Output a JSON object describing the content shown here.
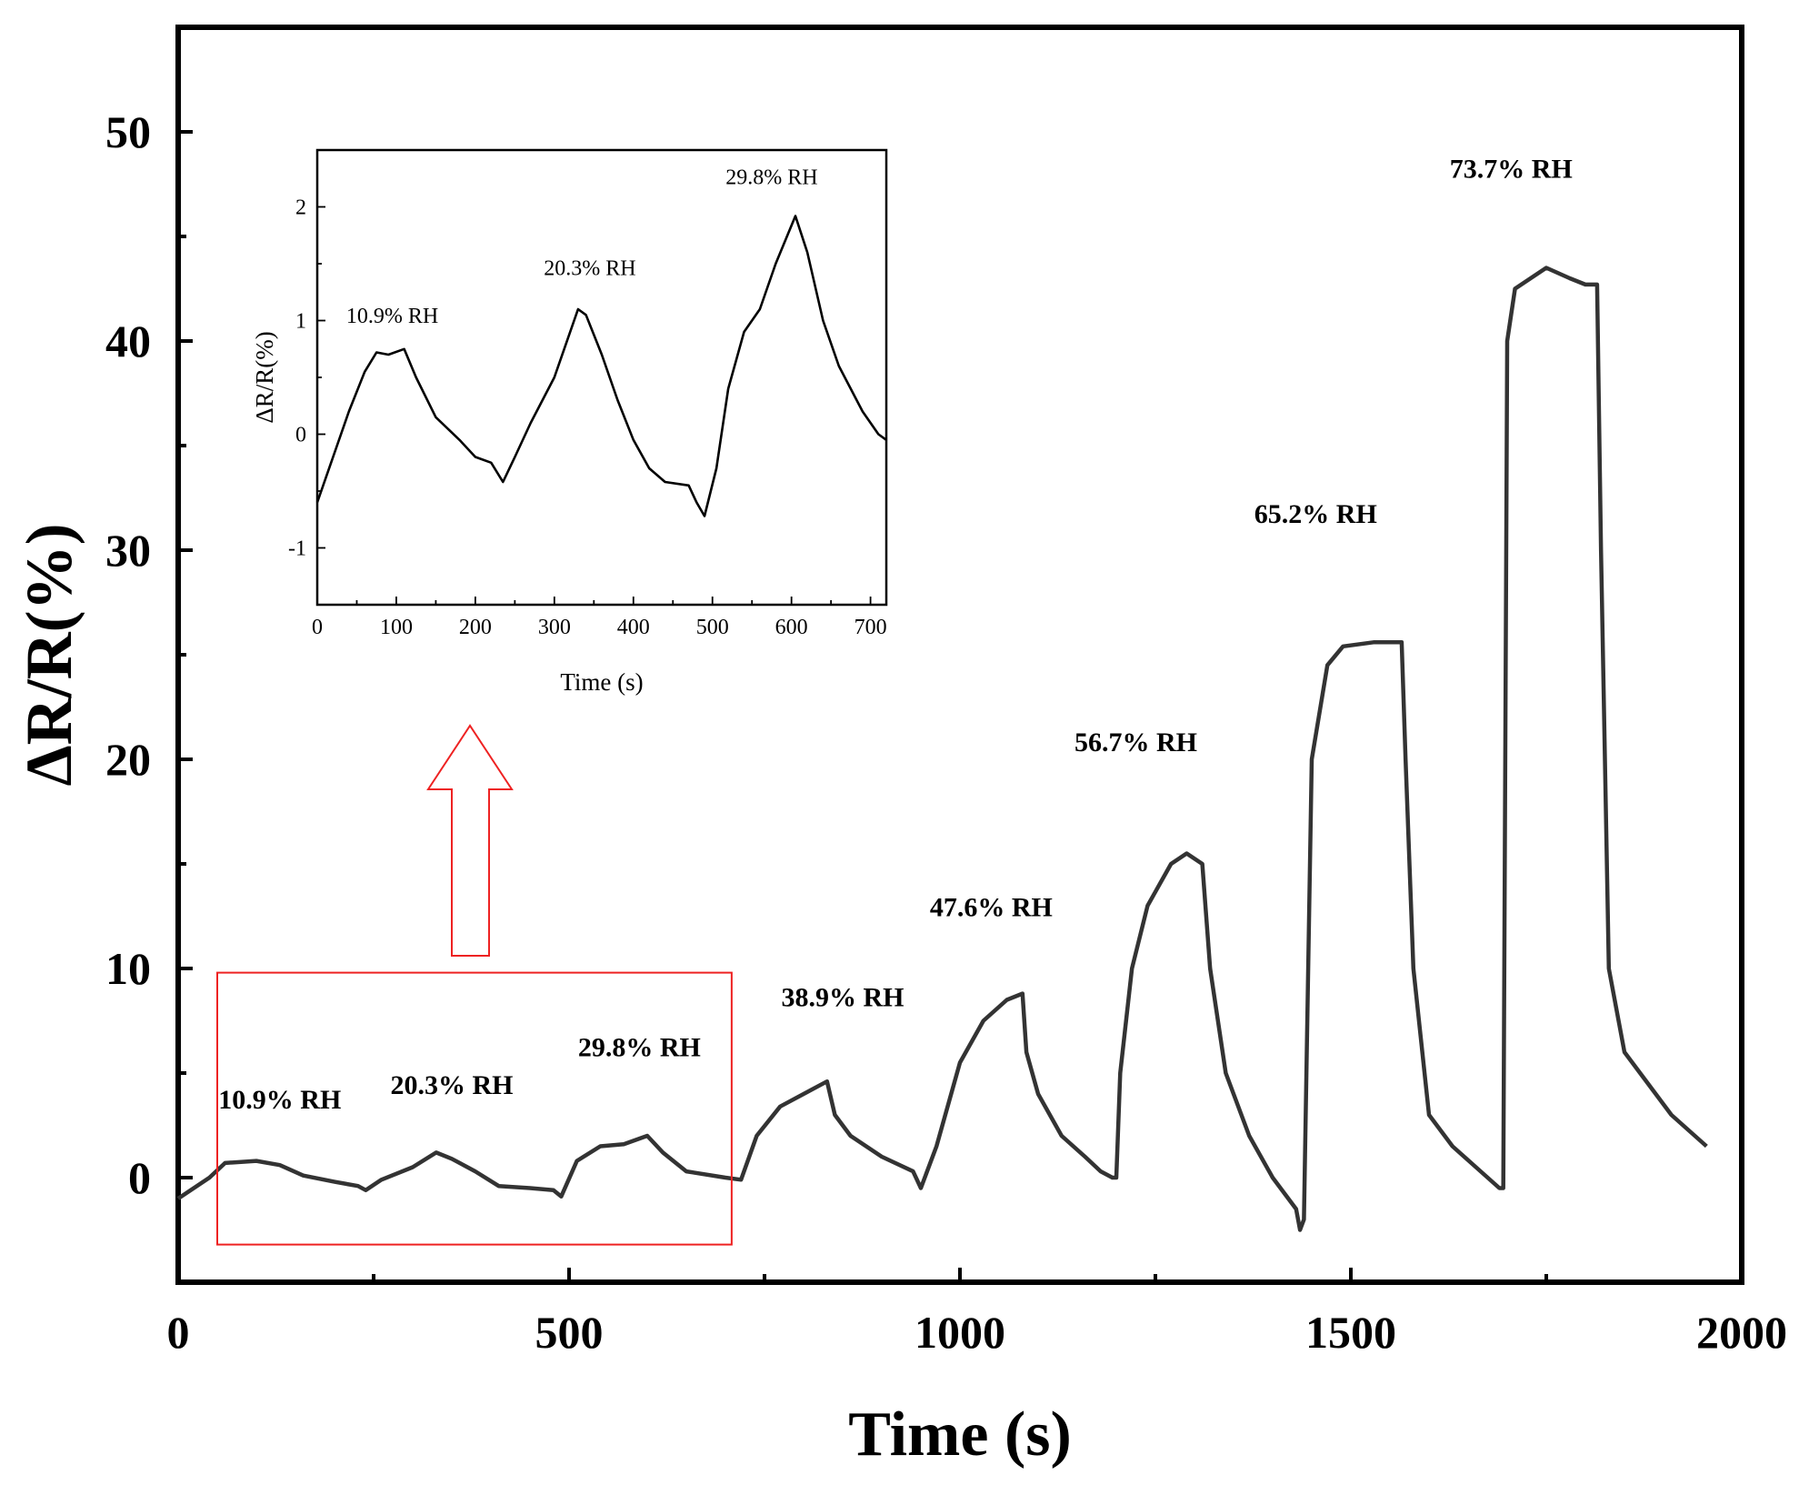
{
  "chart_data": [
    {
      "type": "line",
      "name": "main",
      "xlabel": "Time (s)",
      "ylabel": "ΔR/R(%)",
      "xlim": [
        0,
        2000
      ],
      "ylim": [
        -5,
        55
      ],
      "xticks": [
        0,
        500,
        1000,
        1500,
        2000
      ],
      "xtick_labels": [
        "0",
        "500",
        "1000",
        "1500",
        "2000"
      ],
      "yticks": [
        0,
        10,
        20,
        30,
        40,
        50
      ],
      "ytick_labels": [
        "0",
        "10",
        "20",
        "30",
        "40",
        "50"
      ],
      "color": "#333333",
      "series": [
        {
          "name": "humidity response",
          "points": [
            [
              0,
              -1
            ],
            [
              40,
              0
            ],
            [
              60,
              0.7
            ],
            [
              100,
              0.8
            ],
            [
              130,
              0.6
            ],
            [
              160,
              0.1
            ],
            [
              200,
              -0.2
            ],
            [
              230,
              -0.4
            ],
            [
              240,
              -0.6
            ],
            [
              260,
              -0.1
            ],
            [
              300,
              0.5
            ],
            [
              330,
              1.2
            ],
            [
              350,
              0.9
            ],
            [
              380,
              0.3
            ],
            [
              410,
              -0.4
            ],
            [
              450,
              -0.5
            ],
            [
              480,
              -0.6
            ],
            [
              490,
              -0.9
            ],
            [
              510,
              0.8
            ],
            [
              540,
              1.5
            ],
            [
              570,
              1.6
            ],
            [
              600,
              2.0
            ],
            [
              620,
              1.2
            ],
            [
              650,
              0.3
            ],
            [
              700,
              0.0
            ],
            [
              720,
              -0.1
            ],
            [
              740,
              2.0
            ],
            [
              770,
              3.4
            ],
            [
              800,
              4.0
            ],
            [
              830,
              4.6
            ],
            [
              840,
              3.0
            ],
            [
              860,
              2.0
            ],
            [
              900,
              1.0
            ],
            [
              940,
              0.3
            ],
            [
              950,
              -0.5
            ],
            [
              970,
              1.5
            ],
            [
              1000,
              5.5
            ],
            [
              1030,
              7.5
            ],
            [
              1060,
              8.5
            ],
            [
              1080,
              8.8
            ],
            [
              1085,
              6.0
            ],
            [
              1100,
              4.0
            ],
            [
              1130,
              2.0
            ],
            [
              1160,
              1.0
            ],
            [
              1180,
              0.3
            ],
            [
              1195,
              0.0
            ],
            [
              1200,
              0.0
            ],
            [
              1205,
              5.0
            ],
            [
              1220,
              10.0
            ],
            [
              1240,
              13.0
            ],
            [
              1270,
              15.0
            ],
            [
              1290,
              15.5
            ],
            [
              1310,
              15.0
            ],
            [
              1320,
              10.0
            ],
            [
              1340,
              5.0
            ],
            [
              1370,
              2.0
            ],
            [
              1400,
              0.0
            ],
            [
              1430,
              -1.5
            ],
            [
              1435,
              -2.5
            ],
            [
              1440,
              -2.0
            ],
            [
              1450,
              20.0
            ],
            [
              1470,
              24.5
            ],
            [
              1490,
              25.4
            ],
            [
              1530,
              25.6
            ],
            [
              1565,
              25.6
            ],
            [
              1570,
              20.0
            ],
            [
              1580,
              10.0
            ],
            [
              1600,
              3.0
            ],
            [
              1630,
              1.5
            ],
            [
              1660,
              0.5
            ],
            [
              1690,
              -0.5
            ],
            [
              1695,
              -0.5
            ],
            [
              1700,
              40.0
            ],
            [
              1710,
              42.5
            ],
            [
              1750,
              43.5
            ],
            [
              1780,
              43.0
            ],
            [
              1800,
              42.7
            ],
            [
              1815,
              42.7
            ],
            [
              1820,
              30.0
            ],
            [
              1830,
              10.0
            ],
            [
              1850,
              6.0
            ],
            [
              1880,
              4.5
            ],
            [
              1910,
              3.0
            ],
            [
              1940,
              2.0
            ],
            [
              1955,
              1.5
            ]
          ]
        }
      ],
      "annotations": [
        {
          "text": "10.9% RH",
          "x": 130,
          "y": 3.3
        },
        {
          "text": "20.3% RH",
          "x": 350,
          "y": 4.0
        },
        {
          "text": "29.8% RH",
          "x": 590,
          "y": 5.8
        },
        {
          "text": "38.9% RH",
          "x": 850,
          "y": 8.2
        },
        {
          "text": "47.6% RH",
          "x": 1040,
          "y": 12.5
        },
        {
          "text": "56.7% RH",
          "x": 1225,
          "y": 20.4
        },
        {
          "text": "65.2% RH",
          "x": 1455,
          "y": 31.3
        },
        {
          "text": "73.7% RH",
          "x": 1705,
          "y": 47.8
        }
      ],
      "highlight_box": {
        "x0": 50,
        "x1": 708,
        "y0": -3.2,
        "y1": 9.8,
        "color": "#ee2222"
      }
    },
    {
      "type": "line",
      "name": "inset",
      "xlabel": "Time (s)",
      "ylabel": "ΔR/R(%)",
      "xlim": [
        0,
        720
      ],
      "ylim": [
        -1.5,
        2.5
      ],
      "xticks": [
        0,
        100,
        200,
        300,
        400,
        500,
        600,
        700
      ],
      "xtick_labels": [
        "0",
        "100",
        "200",
        "300",
        "400",
        "500",
        "600",
        "700"
      ],
      "yticks": [
        -1,
        0,
        1,
        2
      ],
      "ytick_labels": [
        "-1",
        "0",
        "1",
        "2"
      ],
      "color": "#000000",
      "series": [
        {
          "name": "low humidity detail",
          "points": [
            [
              0,
              -0.6
            ],
            [
              20,
              -0.2
            ],
            [
              40,
              0.2
            ],
            [
              60,
              0.55
            ],
            [
              75,
              0.72
            ],
            [
              90,
              0.7
            ],
            [
              110,
              0.75
            ],
            [
              125,
              0.5
            ],
            [
              150,
              0.15
            ],
            [
              180,
              -0.05
            ],
            [
              200,
              -0.2
            ],
            [
              220,
              -0.25
            ],
            [
              235,
              -0.42
            ],
            [
              250,
              -0.2
            ],
            [
              270,
              0.1
            ],
            [
              300,
              0.5
            ],
            [
              330,
              1.1
            ],
            [
              340,
              1.05
            ],
            [
              360,
              0.7
            ],
            [
              380,
              0.3
            ],
            [
              400,
              -0.05
            ],
            [
              420,
              -0.3
            ],
            [
              440,
              -0.42
            ],
            [
              470,
              -0.45
            ],
            [
              480,
              -0.6
            ],
            [
              490,
              -0.72
            ],
            [
              505,
              -0.3
            ],
            [
              520,
              0.4
            ],
            [
              540,
              0.9
            ],
            [
              560,
              1.1
            ],
            [
              580,
              1.5
            ],
            [
              605,
              1.92
            ],
            [
              620,
              1.6
            ],
            [
              640,
              1.0
            ],
            [
              660,
              0.6
            ],
            [
              690,
              0.2
            ],
            [
              710,
              0.0
            ],
            [
              720,
              -0.05
            ]
          ]
        }
      ],
      "annotations": [
        {
          "text": "10.9% RH",
          "x": 95,
          "y": 0.98
        },
        {
          "text": "20.3% RH",
          "x": 345,
          "y": 1.4
        },
        {
          "text": "29.8% RH",
          "x": 575,
          "y": 2.2
        }
      ]
    }
  ],
  "arrow": {
    "color": "#ee2222",
    "direction": "up"
  }
}
